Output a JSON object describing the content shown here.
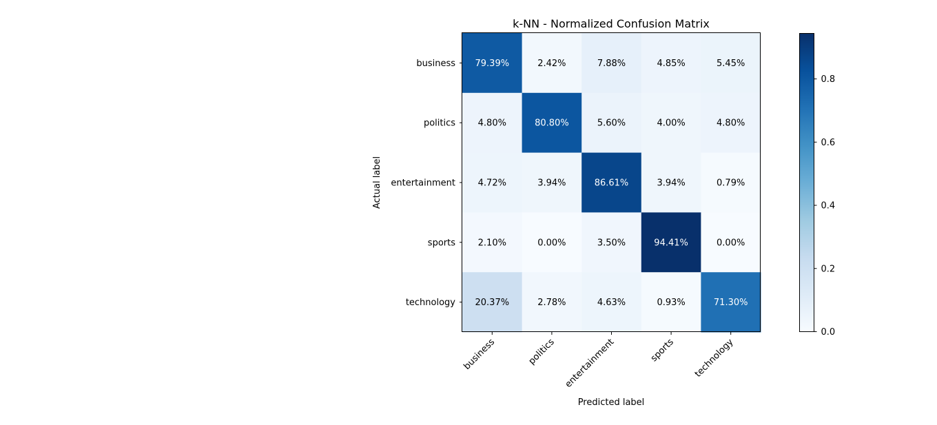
{
  "chart_data": {
    "type": "heatmap",
    "title": "k-NN - Normalized Confusion Matrix",
    "xlabel": "Predicted label",
    "ylabel": "Actual label",
    "x_categories": [
      "business",
      "politics",
      "entertainment",
      "sports",
      "technology"
    ],
    "y_categories": [
      "business",
      "politics",
      "entertainment",
      "sports",
      "technology"
    ],
    "values": [
      [
        0.7939,
        0.0242,
        0.0788,
        0.0485,
        0.0545
      ],
      [
        0.048,
        0.808,
        0.056,
        0.04,
        0.048
      ],
      [
        0.0472,
        0.0394,
        0.8661,
        0.0394,
        0.0079
      ],
      [
        0.021,
        0.0,
        0.035,
        0.9441,
        0.0
      ],
      [
        0.2037,
        0.0278,
        0.0463,
        0.0093,
        0.713
      ]
    ],
    "cell_labels": [
      [
        "79.39%",
        "2.42%",
        "7.88%",
        "4.85%",
        "5.45%"
      ],
      [
        "4.80%",
        "80.80%",
        "5.60%",
        "4.00%",
        "4.80%"
      ],
      [
        "4.72%",
        "3.94%",
        "86.61%",
        "3.94%",
        "0.79%"
      ],
      [
        "2.10%",
        "0.00%",
        "3.50%",
        "94.41%",
        "0.00%"
      ],
      [
        "20.37%",
        "2.78%",
        "4.63%",
        "0.93%",
        "71.30%"
      ]
    ],
    "colormap": "Blues",
    "colorbar": {
      "range": [
        0,
        0.9441
      ],
      "ticks": [
        0.0,
        0.2,
        0.4,
        0.6,
        0.8
      ],
      "tick_labels": [
        "0.0",
        "0.2",
        "0.4",
        "0.6",
        "0.8"
      ]
    },
    "grid": false
  }
}
